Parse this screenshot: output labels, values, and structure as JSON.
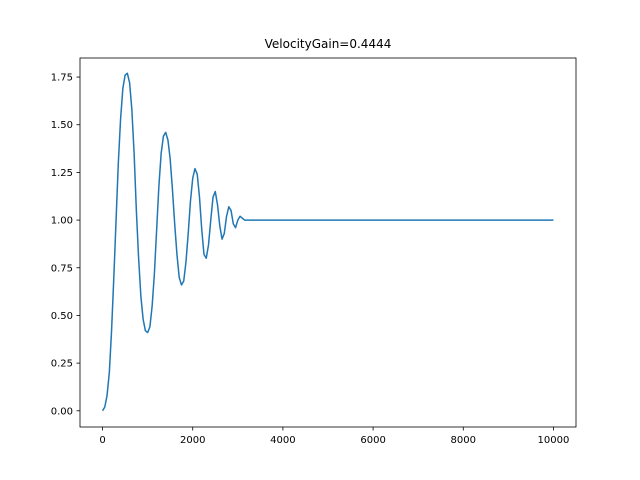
{
  "chart_data": {
    "type": "line",
    "title": "VelocityGain=0.4444",
    "xlabel": "",
    "ylabel": "",
    "xlim": [
      -500,
      10500
    ],
    "ylim": [
      -0.085,
      1.85
    ],
    "xticks": [
      0,
      2000,
      4000,
      6000,
      8000,
      10000
    ],
    "xtick_labels": [
      "0",
      "2000",
      "4000",
      "6000",
      "8000",
      "10000"
    ],
    "yticks": [
      0.0,
      0.25,
      0.5,
      0.75,
      1.0,
      1.25,
      1.5,
      1.75
    ],
    "ytick_labels": [
      "0.00",
      "0.25",
      "0.50",
      "0.75",
      "1.00",
      "1.25",
      "1.50",
      "1.75"
    ],
    "grid": false,
    "legend": "none",
    "series": [
      {
        "color": "#1f77b4",
        "x": [
          0,
          50,
          100,
          150,
          200,
          250,
          300,
          350,
          400,
          450,
          500,
          550,
          600,
          650,
          700,
          750,
          800,
          850,
          900,
          950,
          1000,
          1050,
          1100,
          1150,
          1200,
          1250,
          1300,
          1350,
          1400,
          1450,
          1500,
          1550,
          1600,
          1650,
          1700,
          1750,
          1800,
          1850,
          1900,
          1950,
          2000,
          2050,
          2100,
          2150,
          2200,
          2250,
          2300,
          2350,
          2400,
          2450,
          2500,
          2550,
          2600,
          2650,
          2700,
          2750,
          2800,
          2850,
          2900,
          2950,
          3000,
          3050,
          3100,
          3150,
          3200,
          3250,
          3300,
          3350,
          3400,
          3450,
          3500,
          4000,
          5000,
          6000,
          7000,
          8000,
          9000,
          10000
        ],
        "y": [
          0.0,
          0.02,
          0.08,
          0.2,
          0.42,
          0.7,
          1.0,
          1.3,
          1.53,
          1.69,
          1.76,
          1.77,
          1.72,
          1.58,
          1.35,
          1.05,
          0.8,
          0.6,
          0.48,
          0.42,
          0.41,
          0.44,
          0.55,
          0.72,
          0.95,
          1.18,
          1.35,
          1.44,
          1.46,
          1.42,
          1.32,
          1.16,
          0.98,
          0.82,
          0.7,
          0.66,
          0.68,
          0.78,
          0.93,
          1.1,
          1.22,
          1.27,
          1.24,
          1.12,
          0.95,
          0.82,
          0.8,
          0.87,
          1.0,
          1.12,
          1.15,
          1.08,
          0.97,
          0.9,
          0.93,
          1.02,
          1.07,
          1.05,
          0.98,
          0.96,
          1.0,
          1.02,
          1.01,
          1.0,
          1.0,
          1.0,
          1.0,
          1.0,
          1.0,
          1.0,
          1.0,
          1.0,
          1.0,
          1.0,
          1.0,
          1.0,
          1.0,
          1.0
        ]
      }
    ]
  }
}
